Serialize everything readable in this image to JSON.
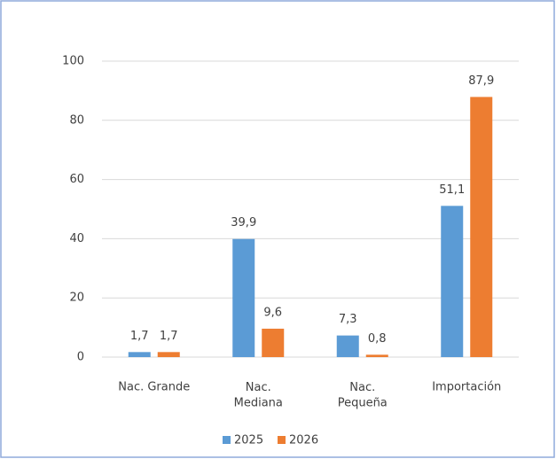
{
  "chart_data": {
    "type": "bar",
    "categories": [
      "Nac. Grande",
      "Nac.\nMediana",
      "Nac.\nPequeña",
      "Importación"
    ],
    "series": [
      {
        "name": "2025",
        "color": "#5b9bd5",
        "values": [
          1.7,
          39.9,
          7.3,
          51.1
        ],
        "value_labels": [
          "1,7",
          "39,9",
          "7,3",
          "51,1"
        ]
      },
      {
        "name": "2026",
        "color": "#ed7d31",
        "values": [
          1.7,
          9.6,
          0.8,
          87.9
        ],
        "value_labels": [
          "1,7",
          "9,6",
          "0,8",
          "87,9"
        ]
      }
    ],
    "ylim": [
      0,
      100
    ],
    "yticks": [
      0,
      20,
      40,
      60,
      80,
      100
    ],
    "grid": true,
    "legend": "bottom"
  }
}
